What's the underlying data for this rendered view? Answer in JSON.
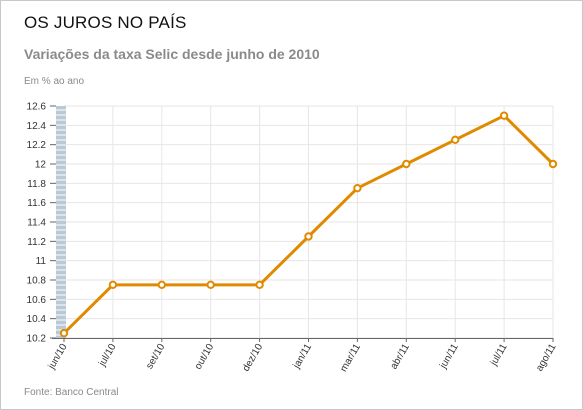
{
  "header": {
    "title": "OS JUROS NO PAÍS",
    "subtitle": "Variações da taxa Selic desde junho de 2010",
    "unit": "Em % ao ano"
  },
  "footer": {
    "source": "Fonte: Banco Central"
  },
  "colors": {
    "line": "#e08a00",
    "grid": "#e6e6e6",
    "left_band": "#b9cad6",
    "axis": "#666666"
  },
  "chart_data": {
    "type": "line",
    "title": "OS JUROS NO PAÍS",
    "subtitle": "Variações da taxa Selic desde junho de 2010",
    "ylabel": "Em % ao ano",
    "xlabel": "",
    "categories": [
      "jun/10",
      "jul/10",
      "set/10",
      "out/10",
      "dez/10",
      "jan/11",
      "mar/11",
      "abr/11",
      "jun/11",
      "jul/11",
      "ago/11"
    ],
    "series": [
      {
        "values": [
          10.25,
          10.75,
          10.75,
          10.75,
          10.75,
          11.25,
          11.75,
          12.0,
          12.25,
          12.5,
          12.0
        ]
      }
    ],
    "ylim": [
      10.2,
      12.6
    ],
    "yticks": [
      "10.2",
      "10.4",
      "10.6",
      "10.8",
      "11",
      "11.2",
      "11.4",
      "11.6",
      "11.8",
      "12",
      "12.2",
      "12.4",
      "12.6"
    ],
    "grid": true,
    "legend": "none"
  }
}
